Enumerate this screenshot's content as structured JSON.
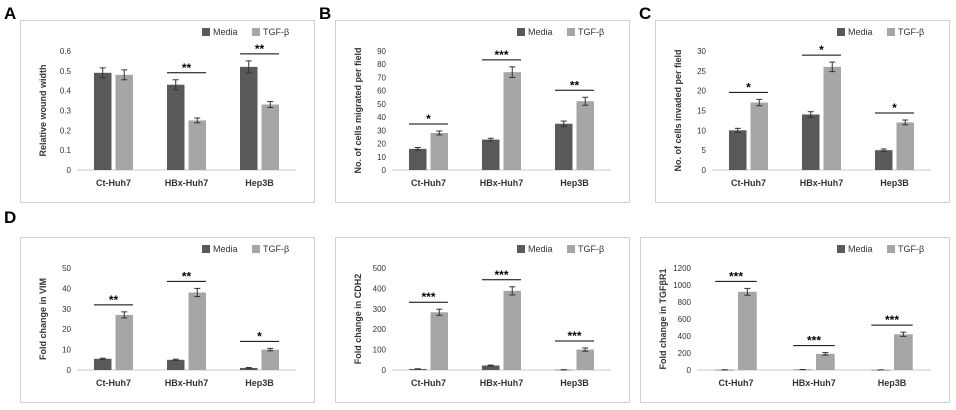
{
  "panels": [
    "A",
    "B",
    "C",
    "D"
  ],
  "colors": {
    "media": "#595959",
    "tgf": "#a6a6a6",
    "axis": "#c8c8c8",
    "text": "#333333"
  },
  "chart_data": [
    {
      "panel": "A",
      "type": "bar",
      "categories": [
        "Ct-Huh7",
        "HBx-Huh7",
        "Hep3B"
      ],
      "series": [
        {
          "name": "Media",
          "values": [
            0.49,
            0.43,
            0.52
          ],
          "errors": [
            0.025,
            0.025,
            0.03
          ]
        },
        {
          "name": "TGF-β",
          "values": [
            0.48,
            0.25,
            0.33
          ],
          "errors": [
            0.025,
            0.012,
            0.015
          ]
        }
      ],
      "ylabel": "Relative wound width",
      "ylim": [
        0,
        0.6
      ],
      "yticks": [
        "0",
        "0.1",
        "0.2",
        "0.3",
        "0.4",
        "0.5",
        "0.6"
      ],
      "significance": [
        "",
        "**",
        "**"
      ],
      "legend": "top-right"
    },
    {
      "panel": "B",
      "type": "bar",
      "categories": [
        "Ct-Huh7",
        "HBx-Huh7",
        "Hep3B"
      ],
      "series": [
        {
          "name": "Media",
          "values": [
            16,
            23,
            35
          ],
          "errors": [
            1,
            1,
            2
          ]
        },
        {
          "name": "TGF-β",
          "values": [
            28,
            74,
            52
          ],
          "errors": [
            1.5,
            4,
            3
          ]
        }
      ],
      "ylabel": "No. of cells migrated per field",
      "ylim": [
        0,
        90
      ],
      "yticks": [
        "0",
        "10",
        "20",
        "30",
        "40",
        "50",
        "60",
        "70",
        "80",
        "90"
      ],
      "significance": [
        "*",
        "***",
        "**"
      ],
      "legend": "top-right"
    },
    {
      "panel": "C",
      "type": "bar",
      "categories": [
        "Ct-Huh7",
        "HBx-Huh7",
        "Hep3B"
      ],
      "series": [
        {
          "name": "Media",
          "values": [
            10,
            14,
            5
          ],
          "errors": [
            0.5,
            0.7,
            0.3
          ]
        },
        {
          "name": "TGF-β",
          "values": [
            17,
            26,
            12
          ],
          "errors": [
            0.8,
            1.2,
            0.6
          ]
        }
      ],
      "ylabel": "No. of cells invaded per field",
      "ylim": [
        0,
        30
      ],
      "yticks": [
        "0",
        "5",
        "10",
        "15",
        "20",
        "25",
        "30"
      ],
      "significance": [
        "*",
        "*",
        "*"
      ],
      "legend": "top-right"
    },
    {
      "panel": "D",
      "type": "bar",
      "categories": [
        "Ct-Huh7",
        "HBx-Huh7",
        "Hep3B"
      ],
      "series": [
        {
          "name": "Media",
          "values": [
            5.5,
            5,
            1
          ],
          "errors": [
            0.3,
            0.3,
            0.2
          ]
        },
        {
          "name": "TGF-β",
          "values": [
            27,
            38,
            10
          ],
          "errors": [
            1.5,
            2,
            0.6
          ]
        }
      ],
      "ylabel": "Fold change in VIM",
      "ylim": [
        0,
        50
      ],
      "yticks": [
        "0",
        "10",
        "20",
        "30",
        "40",
        "50"
      ],
      "significance": [
        "**",
        "**",
        "*"
      ],
      "legend": "top-right"
    },
    {
      "panel": "",
      "type": "bar",
      "categories": [
        "Ct-Huh7",
        "HBx-Huh7",
        "Hep3B"
      ],
      "series": [
        {
          "name": "Media",
          "values": [
            5,
            22,
            1
          ],
          "errors": [
            1,
            2,
            0.5
          ]
        },
        {
          "name": "TGF-β",
          "values": [
            283,
            388,
            100
          ],
          "errors": [
            15,
            20,
            8
          ]
        }
      ],
      "ylabel": "Fold change in CDH2",
      "ylim": [
        0,
        500
      ],
      "yticks": [
        "0",
        "100",
        "200",
        "300",
        "400",
        "500"
      ],
      "significance": [
        "***",
        "***",
        "***"
      ],
      "legend": "top-right"
    },
    {
      "panel": "",
      "type": "bar",
      "categories": [
        "Ct-Huh7",
        "HBx-Huh7",
        "Hep3B"
      ],
      "series": [
        {
          "name": "Media",
          "values": [
            2,
            5,
            1
          ],
          "errors": [
            1,
            1,
            0.5
          ]
        },
        {
          "name": "TGF-β",
          "values": [
            920,
            190,
            420
          ],
          "errors": [
            40,
            15,
            25
          ]
        }
      ],
      "ylabel": "Fold change in TGFβR1",
      "ylim": [
        0,
        1200
      ],
      "yticks": [
        "0",
        "200",
        "400",
        "600",
        "800",
        "1000",
        "1200"
      ],
      "significance": [
        "***",
        "***",
        "***"
      ],
      "legend": "top-right"
    }
  ]
}
